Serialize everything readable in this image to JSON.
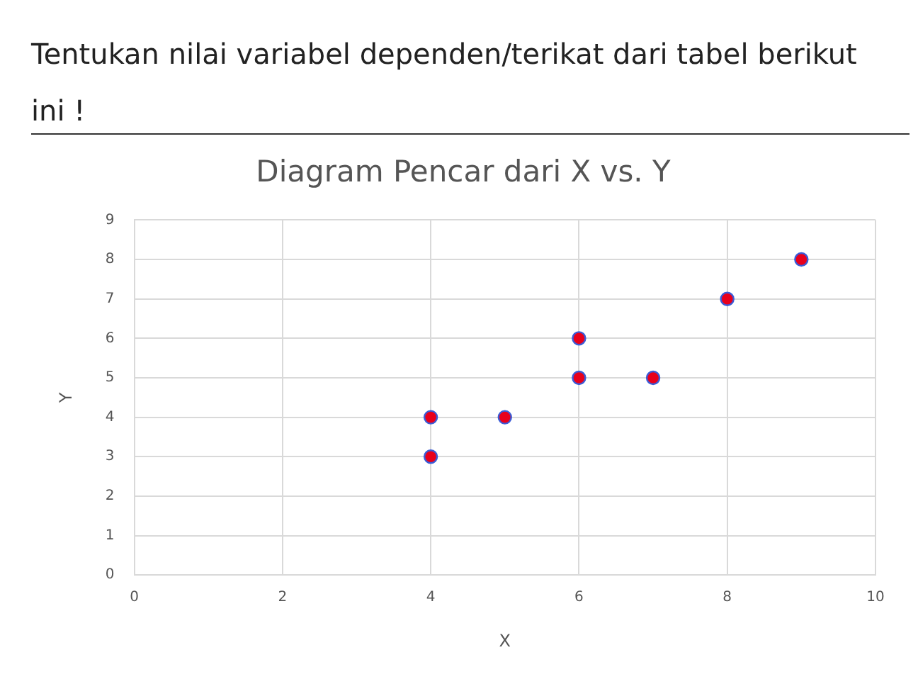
{
  "chart_data": {
    "type": "scatter",
    "title": "Diagram Pencar dari X vs. Y",
    "xlabel": "X",
    "ylabel": "Y",
    "annotations": [
      "Tentukan nilai variabel dependen/terikat dari tabel berikut ini !"
    ],
    "series": [
      {
        "color": "#e8001c",
        "x": [
          4,
          4,
          5,
          6,
          6,
          7,
          8,
          9
        ],
        "values": [
          3,
          4,
          4,
          5,
          6,
          5,
          7,
          8
        ]
      }
    ],
    "xlim": [
      0,
      10
    ],
    "xticks": [
      0,
      2,
      4,
      6,
      8,
      10
    ],
    "ylim": [
      0,
      9
    ],
    "yticks": [
      0,
      1,
      2,
      3,
      4,
      5,
      6,
      7,
      8,
      9
    ],
    "grid": true,
    "marker": "circle",
    "legend": false
  }
}
